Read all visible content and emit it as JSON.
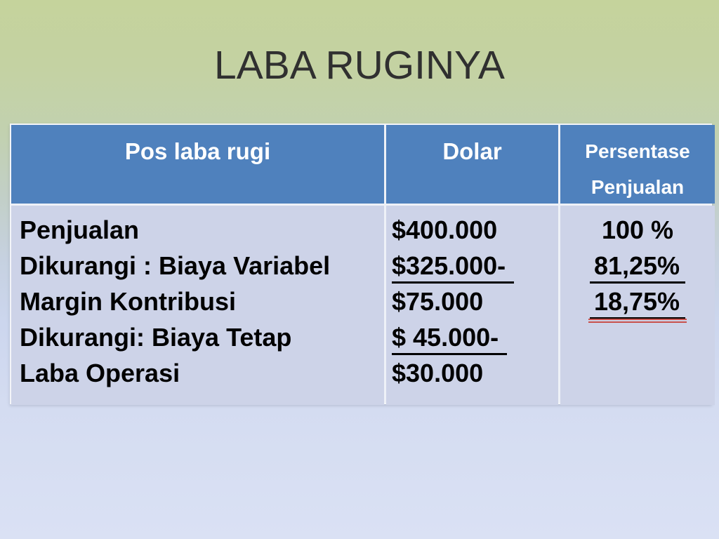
{
  "slide": {
    "title": "LABA RUGINYA"
  },
  "table": {
    "headers": [
      {
        "label": "Pos laba rugi"
      },
      {
        "label": "Dolar"
      },
      {
        "label": "Persentase Penjualan",
        "lines": [
          "Persentase",
          "Penjualan"
        ]
      }
    ],
    "body": {
      "items": [
        {
          "text": "Penjualan",
          "underline": false
        },
        {
          "text": "Dikurangi : Biaya Variabel",
          "underline": false
        },
        {
          "text": "Margin Kontribusi",
          "underline": false
        },
        {
          "text": "Dikurangi: Biaya Tetap",
          "underline": false
        },
        {
          "text": "Laba Operasi",
          "underline": false
        }
      ],
      "dolar": [
        {
          "text": "$400.000",
          "underline": false
        },
        {
          "text": "$325.000-",
          "underline": true
        },
        {
          "text": "$75.000",
          "underline": false
        },
        {
          "text": "$ 45.000-",
          "underline": true
        },
        {
          "text": "$30.000",
          "underline": false
        }
      ],
      "persentase": [
        {
          "text": "100 %",
          "underline": false,
          "red_double_underline": false
        },
        {
          "text": "81,25%",
          "underline": true,
          "red_double_underline": false
        },
        {
          "text": "18,75%",
          "underline": true,
          "red_double_underline": true
        }
      ]
    }
  },
  "colors": {
    "header_bg": "#4f81bd",
    "header_text": "#ffffff",
    "body_bg": "#cdd3e8",
    "body_text": "#000000",
    "red_underline": "#c9504c",
    "title_text": "#303030",
    "background_top": "#c5d39c",
    "background_bottom": "#dae1f4"
  }
}
